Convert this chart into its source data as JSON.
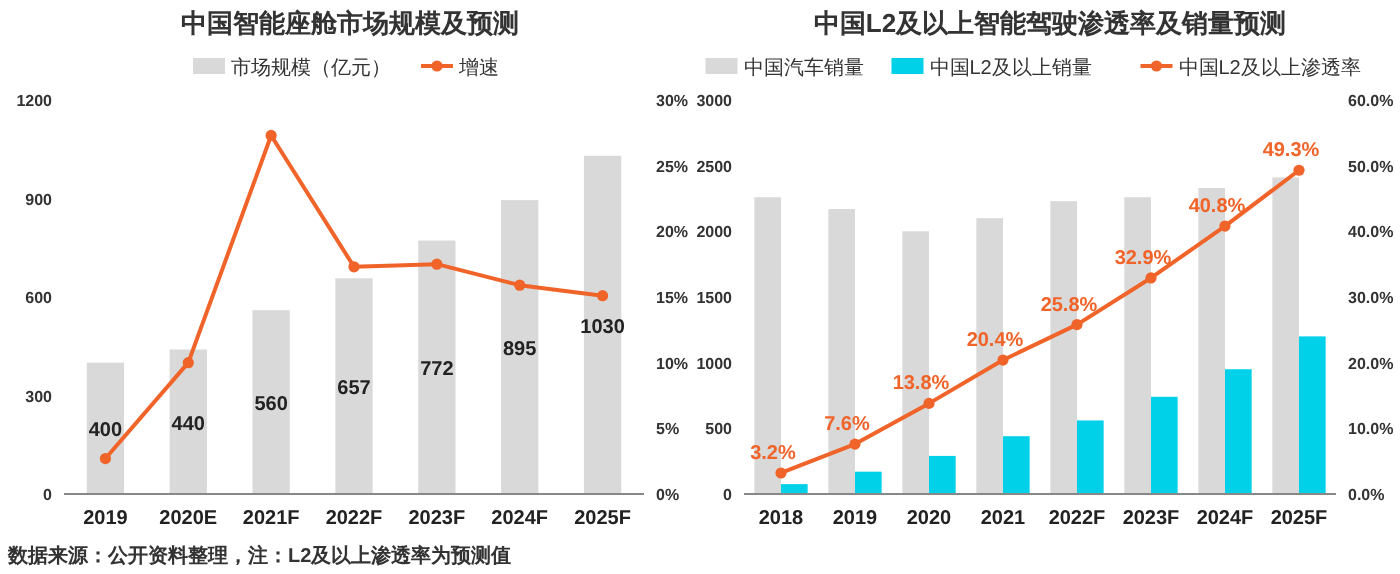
{
  "chart_data": [
    {
      "type": "bar",
      "title": "中国智能座舱市场规模及预测",
      "categories": [
        "2019",
        "2020E",
        "2021F",
        "2022F",
        "2023F",
        "2024F",
        "2025F"
      ],
      "series": [
        {
          "name": "市场规模（亿元）",
          "color": "#d9d9d9",
          "values": [
            400,
            440,
            560,
            657,
            772,
            895,
            1030
          ],
          "value_labels": [
            "400",
            "440",
            "560",
            "657",
            "772",
            "895",
            "1030"
          ]
        },
        {
          "name": "增速",
          "type": "line",
          "axis": "y2",
          "color": "#f0642a",
          "values": [
            2.7,
            10,
            27.3,
            17.3,
            17.5,
            15.9,
            15.1
          ]
        }
      ],
      "ylim": [
        0,
        1200
      ],
      "yticks": [
        0,
        300,
        600,
        900,
        1200
      ],
      "y2lim": [
        0,
        30
      ],
      "y2ticks": [
        {
          "value": 0,
          "label": "0%"
        },
        {
          "value": 5,
          "label": "5%"
        },
        {
          "value": 10,
          "label": "10%"
        },
        {
          "value": 15,
          "label": "15%"
        },
        {
          "value": 20,
          "label": "20%"
        },
        {
          "value": 25,
          "label": "25%"
        },
        {
          "value": 30,
          "label": "30%"
        }
      ],
      "marker": "circle",
      "legend": "top",
      "grid": false,
      "annotations": [
        "数据来源：公开资料整理，注：L2及以上渗透率为预测值"
      ]
    },
    {
      "type": "bar",
      "title": "中国L2及以上智能驾驶渗透率及销量预测",
      "categories": [
        "2018",
        "2019",
        "2020",
        "2021",
        "2022F",
        "2023F",
        "2024F",
        "2025F"
      ],
      "series": [
        {
          "name": "中国汽车销量",
          "color": "#d9d9d9",
          "values": [
            2260,
            2170,
            2000,
            2100,
            2230,
            2260,
            2330,
            2410
          ]
        },
        {
          "name": "中国L2及以上销量",
          "color": "#00d0e8",
          "values": [
            75,
            170,
            290,
            440,
            560,
            740,
            950,
            1200
          ]
        },
        {
          "name": "中国L2及以上渗透率",
          "type": "line",
          "axis": "y2",
          "color": "#f0642a",
          "values": [
            3.2,
            7.6,
            13.8,
            20.4,
            25.8,
            32.9,
            40.8,
            49.3
          ],
          "value_labels": [
            "3.2%",
            "7.6%",
            "13.8%",
            "20.4%",
            "25.8%",
            "32.9%",
            "40.8%",
            "49.3%"
          ]
        }
      ],
      "ylim": [
        0,
        3000
      ],
      "yticks": [
        0,
        500,
        1000,
        1500,
        2000,
        2500,
        3000
      ],
      "y2lim": [
        0,
        60
      ],
      "y2ticks": [
        {
          "value": 0,
          "label": "0.0%"
        },
        {
          "value": 10,
          "label": "10.0%"
        },
        {
          "value": 20,
          "label": "20.0%"
        },
        {
          "value": 30,
          "label": "30.0%"
        },
        {
          "value": 40,
          "label": "40.0%"
        },
        {
          "value": 50,
          "label": "50.0%"
        },
        {
          "value": 60,
          "label": "60.0%"
        }
      ],
      "marker": "circle",
      "legend": "top",
      "grid": false
    }
  ]
}
